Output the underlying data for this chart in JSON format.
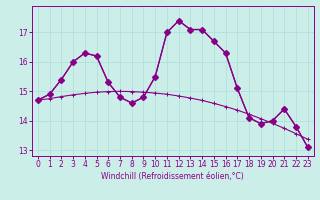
{
  "xlabel": "Windchill (Refroidissement éolien,°C)",
  "bg_color": "#cceee8",
  "grid_color": "#aaddda",
  "line_color": "#880088",
  "x": [
    0,
    1,
    2,
    3,
    4,
    5,
    6,
    7,
    8,
    9,
    10,
    11,
    12,
    13,
    14,
    15,
    16,
    17,
    18,
    19,
    20,
    21,
    22,
    23
  ],
  "curve_main": [
    14.7,
    14.9,
    15.4,
    16.0,
    16.3,
    16.2,
    15.3,
    14.8,
    14.6,
    14.8,
    15.5,
    17.0,
    17.4,
    17.1,
    17.1,
    16.7,
    16.3,
    15.1,
    14.1,
    13.9,
    14.0,
    14.4,
    13.8,
    13.1
  ],
  "curve_secondary": [
    14.7,
    14.9,
    15.4,
    16.0,
    16.3,
    16.2,
    15.3,
    14.8,
    14.6,
    14.8,
    15.5,
    17.0,
    17.4,
    17.1,
    17.1,
    16.7,
    16.3,
    15.1,
    14.1,
    13.9,
    14.0,
    14.4,
    13.8,
    13.1
  ],
  "curve_trend": [
    14.7,
    14.75,
    14.82,
    14.88,
    14.93,
    14.97,
    14.99,
    15.0,
    14.99,
    14.97,
    14.94,
    14.9,
    14.84,
    14.77,
    14.69,
    14.59,
    14.48,
    14.36,
    14.22,
    14.07,
    13.91,
    13.74,
    13.56,
    13.37
  ],
  "ylim": [
    12.8,
    17.9
  ],
  "xlim": [
    -0.5,
    23.5
  ],
  "yticks": [
    13,
    14,
    15,
    16,
    17
  ],
  "xticks": [
    0,
    1,
    2,
    3,
    4,
    5,
    6,
    7,
    8,
    9,
    10,
    11,
    12,
    13,
    14,
    15,
    16,
    17,
    18,
    19,
    20,
    21,
    22,
    23
  ],
  "tick_fontsize": 5.5,
  "xlabel_fontsize": 5.5
}
